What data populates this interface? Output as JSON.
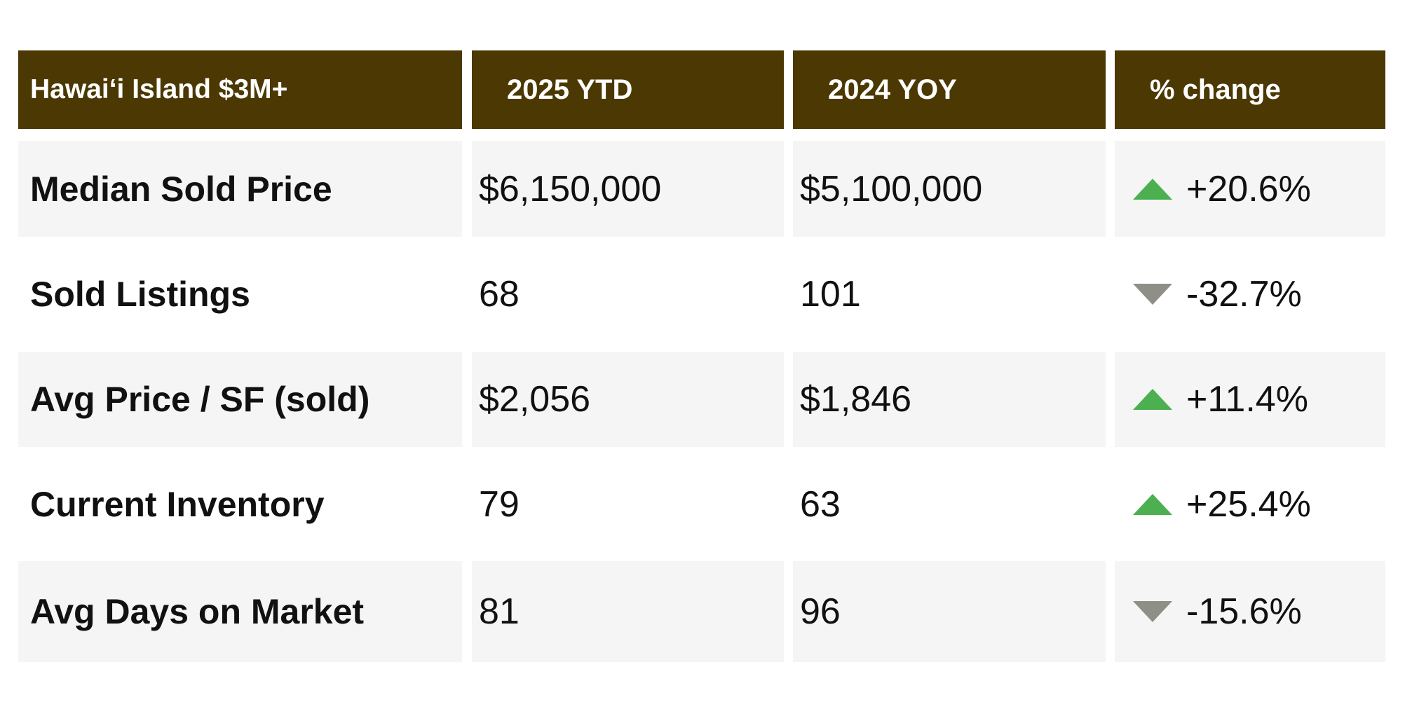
{
  "table": {
    "headers": [
      "Hawaiʻi Island $3M+",
      "2025 YTD",
      "2024 YOY",
      "% change"
    ],
    "rows": [
      {
        "label": "Median Sold Price",
        "ytd_2025": "$6,150,000",
        "yoy_2024": "$5,100,000",
        "change": "+20.6%",
        "direction": "up",
        "icon": "triangle-up-icon"
      },
      {
        "label": "Sold Listings",
        "ytd_2025": "68",
        "yoy_2024": "101",
        "change": "-32.7%",
        "direction": "down",
        "icon": "triangle-down-icon"
      },
      {
        "label": "Avg Price / SF (sold)",
        "ytd_2025": "$2,056",
        "yoy_2024": "$1,846",
        "change": "+11.4%",
        "direction": "up",
        "icon": "triangle-up-icon"
      },
      {
        "label": "Current Inventory",
        "ytd_2025": "79",
        "yoy_2024": "63",
        "change": "+25.4%",
        "direction": "up",
        "icon": "triangle-up-icon"
      },
      {
        "label": "Avg Days on Market",
        "ytd_2025": "81",
        "yoy_2024": "96",
        "change": "-15.6%",
        "direction": "down",
        "icon": "triangle-down-icon"
      }
    ]
  },
  "colors": {
    "header_bg": "#4b3802",
    "header_text": "#ffffff",
    "row_shade": "#f4f5f4",
    "up": "#4caf50",
    "down": "#8f8f88"
  }
}
